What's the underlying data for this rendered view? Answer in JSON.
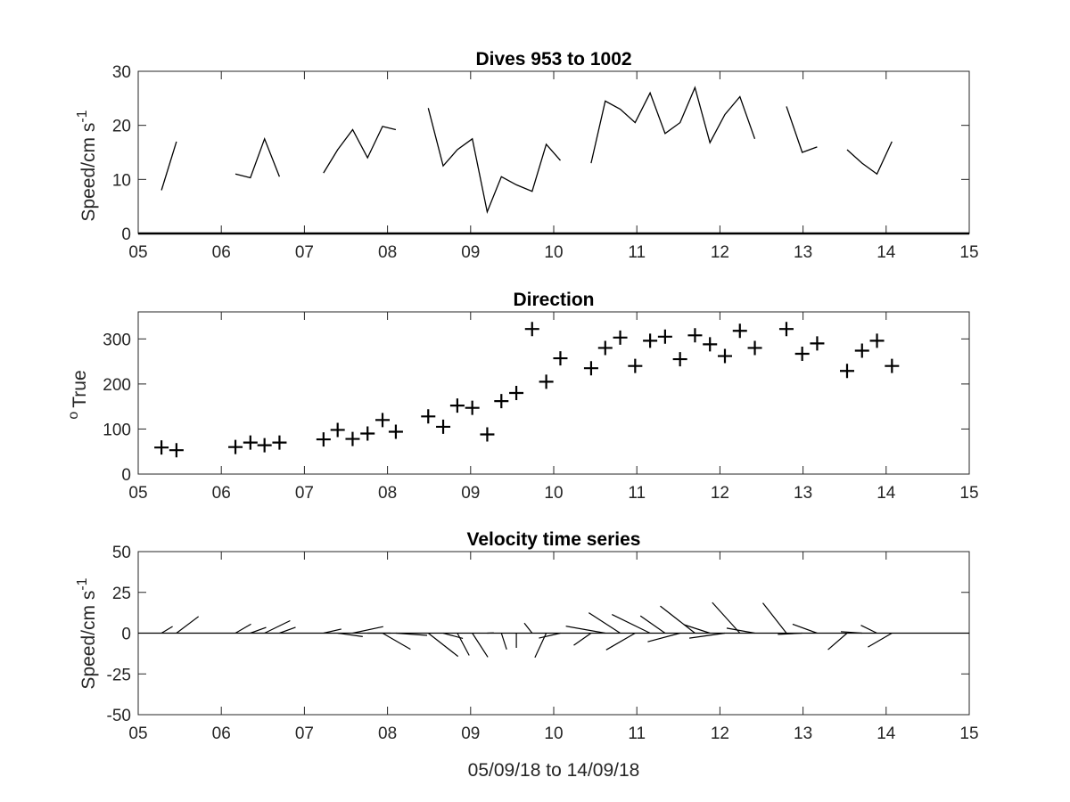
{
  "colors": {
    "axes": "#262626",
    "line": "#000000",
    "background": "#ffffff"
  },
  "chart_data": [
    {
      "type": "line",
      "title": "Dives 953 to 1002",
      "ylabel": "Speed/cm s",
      "ylabel_sup": "-1",
      "xlabel": "",
      "xlim": [
        5,
        15
      ],
      "ylim": [
        0,
        30
      ],
      "xticks": [
        5,
        6,
        7,
        8,
        9,
        10,
        11,
        12,
        13,
        14,
        15
      ],
      "xtick_labels": [
        "05",
        "06",
        "07",
        "08",
        "09",
        "10",
        "11",
        "12",
        "13",
        "14",
        "15"
      ],
      "yticks": [
        0,
        10,
        20,
        30
      ],
      "ytick_labels": [
        "0",
        "10",
        "20",
        "30"
      ],
      "grid": false,
      "zero_line": true,
      "series": [
        {
          "x": [
            5.28,
            5.46
          ],
          "y": [
            8,
            17
          ]
        },
        {
          "x": [
            6.17,
            6.35,
            6.52,
            6.7
          ],
          "y": [
            11,
            10.3,
            17.5,
            10.5
          ]
        },
        {
          "x": [
            7.23,
            7.4,
            7.58,
            7.76,
            7.94,
            8.1
          ],
          "y": [
            11.2,
            15.5,
            19.2,
            14,
            19.8,
            19.2
          ]
        },
        {
          "x": [
            8.49,
            8.67,
            8.84,
            9.02,
            9.2,
            9.37,
            9.55,
            9.74,
            9.91,
            10.08
          ],
          "y": [
            23.2,
            12.5,
            15.5,
            17.5,
            4,
            10.5,
            9,
            7.8,
            16.5,
            13.5
          ]
        },
        {
          "x": [
            10.45,
            10.62,
            10.8,
            10.98,
            11.16,
            11.34,
            11.52,
            11.7,
            11.88,
            12.06,
            12.24,
            12.42
          ],
          "y": [
            13,
            24.5,
            23,
            20.5,
            26,
            18.5,
            20.5,
            27,
            16.8,
            22,
            25.3,
            17.5
          ]
        },
        {
          "x": [
            12.8,
            12.99,
            13.17
          ],
          "y": [
            23.5,
            15,
            16
          ]
        },
        {
          "x": [
            13.53,
            13.71,
            13.89,
            14.07
          ],
          "y": [
            15.5,
            13,
            11,
            17
          ]
        }
      ]
    },
    {
      "type": "scatter",
      "title": "Direction",
      "ylabel": "True",
      "ylabel_sup": "o",
      "xlabel": "",
      "xlim": [
        5,
        15
      ],
      "ylim": [
        0,
        360
      ],
      "xticks": [
        5,
        6,
        7,
        8,
        9,
        10,
        11,
        12,
        13,
        14,
        15
      ],
      "xtick_labels": [
        "05",
        "06",
        "07",
        "08",
        "09",
        "10",
        "11",
        "12",
        "13",
        "14",
        "15"
      ],
      "yticks": [
        0,
        100,
        200,
        300
      ],
      "ytick_labels": [
        "0",
        "100",
        "200",
        "300"
      ],
      "grid": false,
      "marker": "+",
      "series": [
        {
          "x": [
            5.28,
            5.46,
            6.17,
            6.35,
            6.52,
            6.7,
            7.23,
            7.4,
            7.58,
            7.76,
            7.94,
            8.1,
            8.49,
            8.67,
            8.84,
            9.02,
            9.2,
            9.37,
            9.55,
            9.74,
            9.91,
            10.08,
            10.45,
            10.62,
            10.8,
            10.98,
            11.16,
            11.34,
            11.52,
            11.7,
            11.88,
            12.06,
            12.24,
            12.42,
            12.8,
            12.99,
            13.17,
            13.53,
            13.71,
            13.89,
            14.07
          ],
          "y": [
            59,
            53,
            60,
            70,
            64,
            70,
            77,
            98,
            78,
            90,
            120,
            94,
            128,
            105,
            152,
            147,
            88,
            162,
            180,
            322,
            205,
            257,
            235,
            280,
            303,
            240,
            296,
            305,
            255,
            308,
            288,
            262,
            318,
            280,
            322,
            267,
            290,
            229,
            274,
            296,
            240
          ]
        }
      ]
    },
    {
      "type": "quiver",
      "title": "Velocity time series",
      "ylabel": "Speed/cm s",
      "ylabel_sup": "-1",
      "xlabel": "05/09/18 to 14/09/18",
      "xlim": [
        5,
        15
      ],
      "ylim": [
        -50,
        50
      ],
      "xticks": [
        5,
        6,
        7,
        8,
        9,
        10,
        11,
        12,
        13,
        14,
        15
      ],
      "xtick_labels": [
        "05",
        "06",
        "07",
        "08",
        "09",
        "10",
        "11",
        "12",
        "13",
        "14",
        "15"
      ],
      "yticks": [
        -50,
        -25,
        0,
        25,
        50
      ],
      "ytick_labels": [
        "-50",
        "-25",
        "0",
        "25",
        "50"
      ],
      "grid": false,
      "zero_line": true,
      "series": [
        {
          "x": [
            5.28,
            5.46,
            6.17,
            6.35,
            6.52,
            6.7,
            7.23,
            7.4,
            7.58,
            7.76,
            7.94,
            8.1,
            8.49,
            8.67,
            8.84,
            9.02,
            9.2,
            9.37,
            9.55,
            9.74,
            9.91,
            10.08,
            10.45,
            10.62,
            10.8,
            10.98,
            11.16,
            11.34,
            11.52,
            11.7,
            11.88,
            12.06,
            12.24,
            12.42,
            12.8,
            12.99,
            13.17,
            13.53,
            13.71,
            13.89,
            14.07
          ],
          "speed": [
            8,
            17,
            11,
            10.3,
            17.5,
            10.5,
            11.2,
            15.5,
            19.2,
            14,
            19.8,
            19.2,
            23.2,
            12.5,
            15.5,
            17.5,
            4,
            10.5,
            9,
            7.8,
            16.5,
            13.5,
            13,
            24.5,
            23,
            20.5,
            26,
            18.5,
            20.5,
            27,
            16.8,
            22,
            25.3,
            17.5,
            23.5,
            15,
            16,
            15.5,
            13,
            11,
            17
          ],
          "direction_deg_true": [
            59,
            53,
            60,
            70,
            64,
            70,
            77,
            98,
            78,
            90,
            120,
            94,
            128,
            105,
            152,
            147,
            88,
            162,
            180,
            322,
            205,
            257,
            235,
            280,
            303,
            240,
            296,
            305,
            255,
            308,
            288,
            262,
            318,
            280,
            322,
            267,
            290,
            229,
            274,
            296,
            240
          ]
        }
      ]
    }
  ]
}
